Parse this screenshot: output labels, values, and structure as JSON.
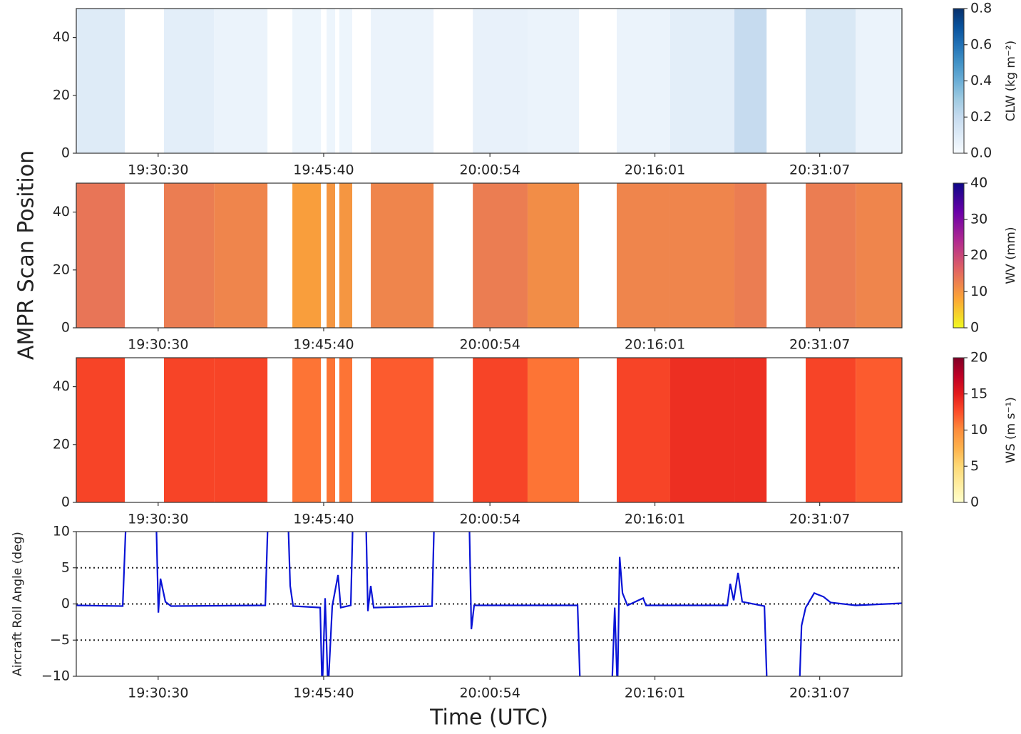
{
  "figure": {
    "ylabel": "AMPR Scan Position",
    "xlabel": "Time (UTC)"
  },
  "chart_data": [
    {
      "type": "heatmap",
      "xlim": [
        "19:23:00",
        "20:38:39"
      ],
      "xticks": [
        "19:30:30",
        "19:45:40",
        "20:00:54",
        "20:16:01",
        "20:31:07"
      ],
      "ylim": [
        0,
        50
      ],
      "yticks": [
        0,
        20,
        40
      ],
      "x_edges": [
        "19:23:00",
        "19:27:27",
        "19:31:02",
        "19:35:37",
        "19:40:31",
        "19:42:48",
        "19:45:25",
        "19:45:56",
        "19:46:43",
        "19:47:06",
        "19:48:17",
        "19:49:59",
        "19:55:44",
        "19:59:20",
        "20:04:21",
        "20:09:04",
        "20:12:31",
        "20:17:25",
        "20:23:18",
        "20:26:15",
        "20:29:50",
        "20:34:25",
        "20:38:39"
      ],
      "values": [
        0.1,
        null,
        0.08,
        0.05,
        null,
        0.04,
        null,
        0.04,
        null,
        0.04,
        null,
        0.05,
        null,
        0.06,
        0.05,
        null,
        0.05,
        0.08,
        0.2,
        null,
        0.12,
        0.05
      ],
      "colorbar": {
        "label": "CLW (kg m⁻²)",
        "lim": [
          0,
          0.8
        ],
        "ticks": [
          {
            "value": 0,
            "label": "0.0"
          },
          0.2,
          0.4,
          0.6,
          0.8
        ],
        "colors": [
          "#f7fbff",
          "#deebf7",
          "#c6dbef",
          "#9ecae1",
          "#6baed6",
          "#4292c6",
          "#2171b5",
          "#08519c",
          "#08306b"
        ]
      }
    },
    {
      "type": "heatmap",
      "xlim": [
        "19:23:00",
        "20:38:39"
      ],
      "xticks": [
        "19:30:30",
        "19:45:40",
        "20:00:54",
        "20:16:01",
        "20:31:07"
      ],
      "ylim": [
        0,
        50
      ],
      "yticks": [
        0,
        20,
        40
      ],
      "x_edges": [
        "19:23:00",
        "19:27:27",
        "19:31:02",
        "19:35:37",
        "19:40:31",
        "19:42:48",
        "19:45:25",
        "19:45:56",
        "19:46:43",
        "19:47:06",
        "19:48:17",
        "19:49:59",
        "19:55:44",
        "19:59:20",
        "20:04:21",
        "20:09:04",
        "20:12:31",
        "20:17:25",
        "20:23:18",
        "20:26:15",
        "20:29:50",
        "20:34:25",
        "20:38:39"
      ],
      "values": [
        14,
        null,
        13,
        12,
        null,
        9,
        null,
        10,
        null,
        10,
        null,
        12,
        null,
        13,
        11,
        null,
        12,
        12,
        13,
        null,
        13,
        12
      ],
      "colorbar": {
        "label": "WV (mm)",
        "lim": [
          0,
          40
        ],
        "ticks": [
          0,
          10,
          20,
          30,
          40
        ],
        "colors": [
          "#f0f921",
          "#fca636",
          "#e16462",
          "#b12a90",
          "#6a00a8",
          "#0d0887"
        ]
      }
    },
    {
      "type": "heatmap",
      "xlim": [
        "19:23:00",
        "20:38:39"
      ],
      "xticks": [
        "19:30:30",
        "19:45:40",
        "20:00:54",
        "20:16:01",
        "20:31:07"
      ],
      "ylim": [
        0,
        50
      ],
      "yticks": [
        0,
        20,
        40
      ],
      "x_edges": [
        "19:23:00",
        "19:27:27",
        "19:31:02",
        "19:35:37",
        "19:40:31",
        "19:42:48",
        "19:45:25",
        "19:45:56",
        "19:46:43",
        "19:47:06",
        "19:48:17",
        "19:49:59",
        "19:55:44",
        "19:59:20",
        "20:04:21",
        "20:09:04",
        "20:12:31",
        "20:17:25",
        "20:23:18",
        "20:26:15",
        "20:29:50",
        "20:34:25",
        "20:38:39"
      ],
      "values": [
        13,
        null,
        13,
        13,
        null,
        11,
        null,
        11,
        null,
        11,
        null,
        12,
        null,
        13,
        11,
        null,
        13,
        14,
        14,
        null,
        13,
        12
      ],
      "colorbar": {
        "label": "WS (m s⁻¹)",
        "lim": [
          0,
          20
        ],
        "ticks": [
          0,
          5,
          10,
          15,
          20
        ],
        "colors": [
          "#ffffcc",
          "#ffeda0",
          "#fed976",
          "#feb24c",
          "#fd8d3c",
          "#fc4e2a",
          "#e31a1c",
          "#bd0026",
          "#800026"
        ]
      }
    },
    {
      "type": "line",
      "ylabel": "Aircraft Roll Angle (deg)",
      "xlim": [
        "19:23:00",
        "20:38:39"
      ],
      "xticks": [
        "19:30:30",
        "19:45:40",
        "20:00:54",
        "20:16:01",
        "20:31:07"
      ],
      "ylim": [
        -10,
        10
      ],
      "yticks": [
        {
          "value": -10,
          "label": "−10"
        },
        {
          "value": -5,
          "label": "−5"
        },
        0,
        5,
        10
      ],
      "hlines": [
        -5,
        0,
        5
      ],
      "x": [
        "19:23:00",
        "19:27:15",
        "19:27:34",
        "19:30:19",
        "19:30:31",
        "19:30:43",
        "19:31:10",
        "19:31:41",
        "19:40:19",
        "19:40:34",
        "19:42:24",
        "19:42:36",
        "19:42:52",
        "19:45:21",
        "19:45:32",
        "19:45:48",
        "19:46:04",
        "19:46:27",
        "19:46:59",
        "19:47:14",
        "19:48:09",
        "19:48:21",
        "19:49:32",
        "19:49:43",
        "19:49:59",
        "19:50:15",
        "19:55:36",
        "19:55:48",
        "19:59:00",
        "19:59:12",
        "19:59:27",
        "20:08:56",
        "20:09:11",
        "20:12:04",
        "20:12:20",
        "20:12:35",
        "20:12:47",
        "20:13:03",
        "20:13:30",
        "20:14:56",
        "20:15:12",
        "20:22:39",
        "20:22:55",
        "20:23:14",
        "20:23:38",
        "20:24:01",
        "20:26:03",
        "20:26:18",
        "20:29:15",
        "20:29:27",
        "20:29:50",
        "20:30:37",
        "20:31:28",
        "20:32:07",
        "20:34:25",
        "20:38:39"
      ],
      "series": [
        {
          "color": "#0a14d6",
          "values": [
            -0.2,
            -0.3,
            12,
            12,
            -1.2,
            3.5,
            0.3,
            -0.3,
            -0.2,
            12,
            12,
            2.5,
            -0.3,
            -0.5,
            -12,
            0.8,
            -12,
            -0.3,
            4,
            -0.5,
            -0.2,
            12,
            12,
            -1,
            2.5,
            -0.5,
            -0.3,
            12,
            12,
            -3.5,
            -0.2,
            -0.2,
            -12,
            -12,
            -0.5,
            -12,
            6.5,
            1.5,
            -0.2,
            0.8,
            -0.2,
            -0.2,
            2.8,
            0.5,
            4.3,
            0.3,
            -0.3,
            -12,
            -12,
            -3,
            -0.5,
            1.5,
            1,
            0.2,
            -0.2,
            0.1
          ]
        }
      ]
    }
  ]
}
